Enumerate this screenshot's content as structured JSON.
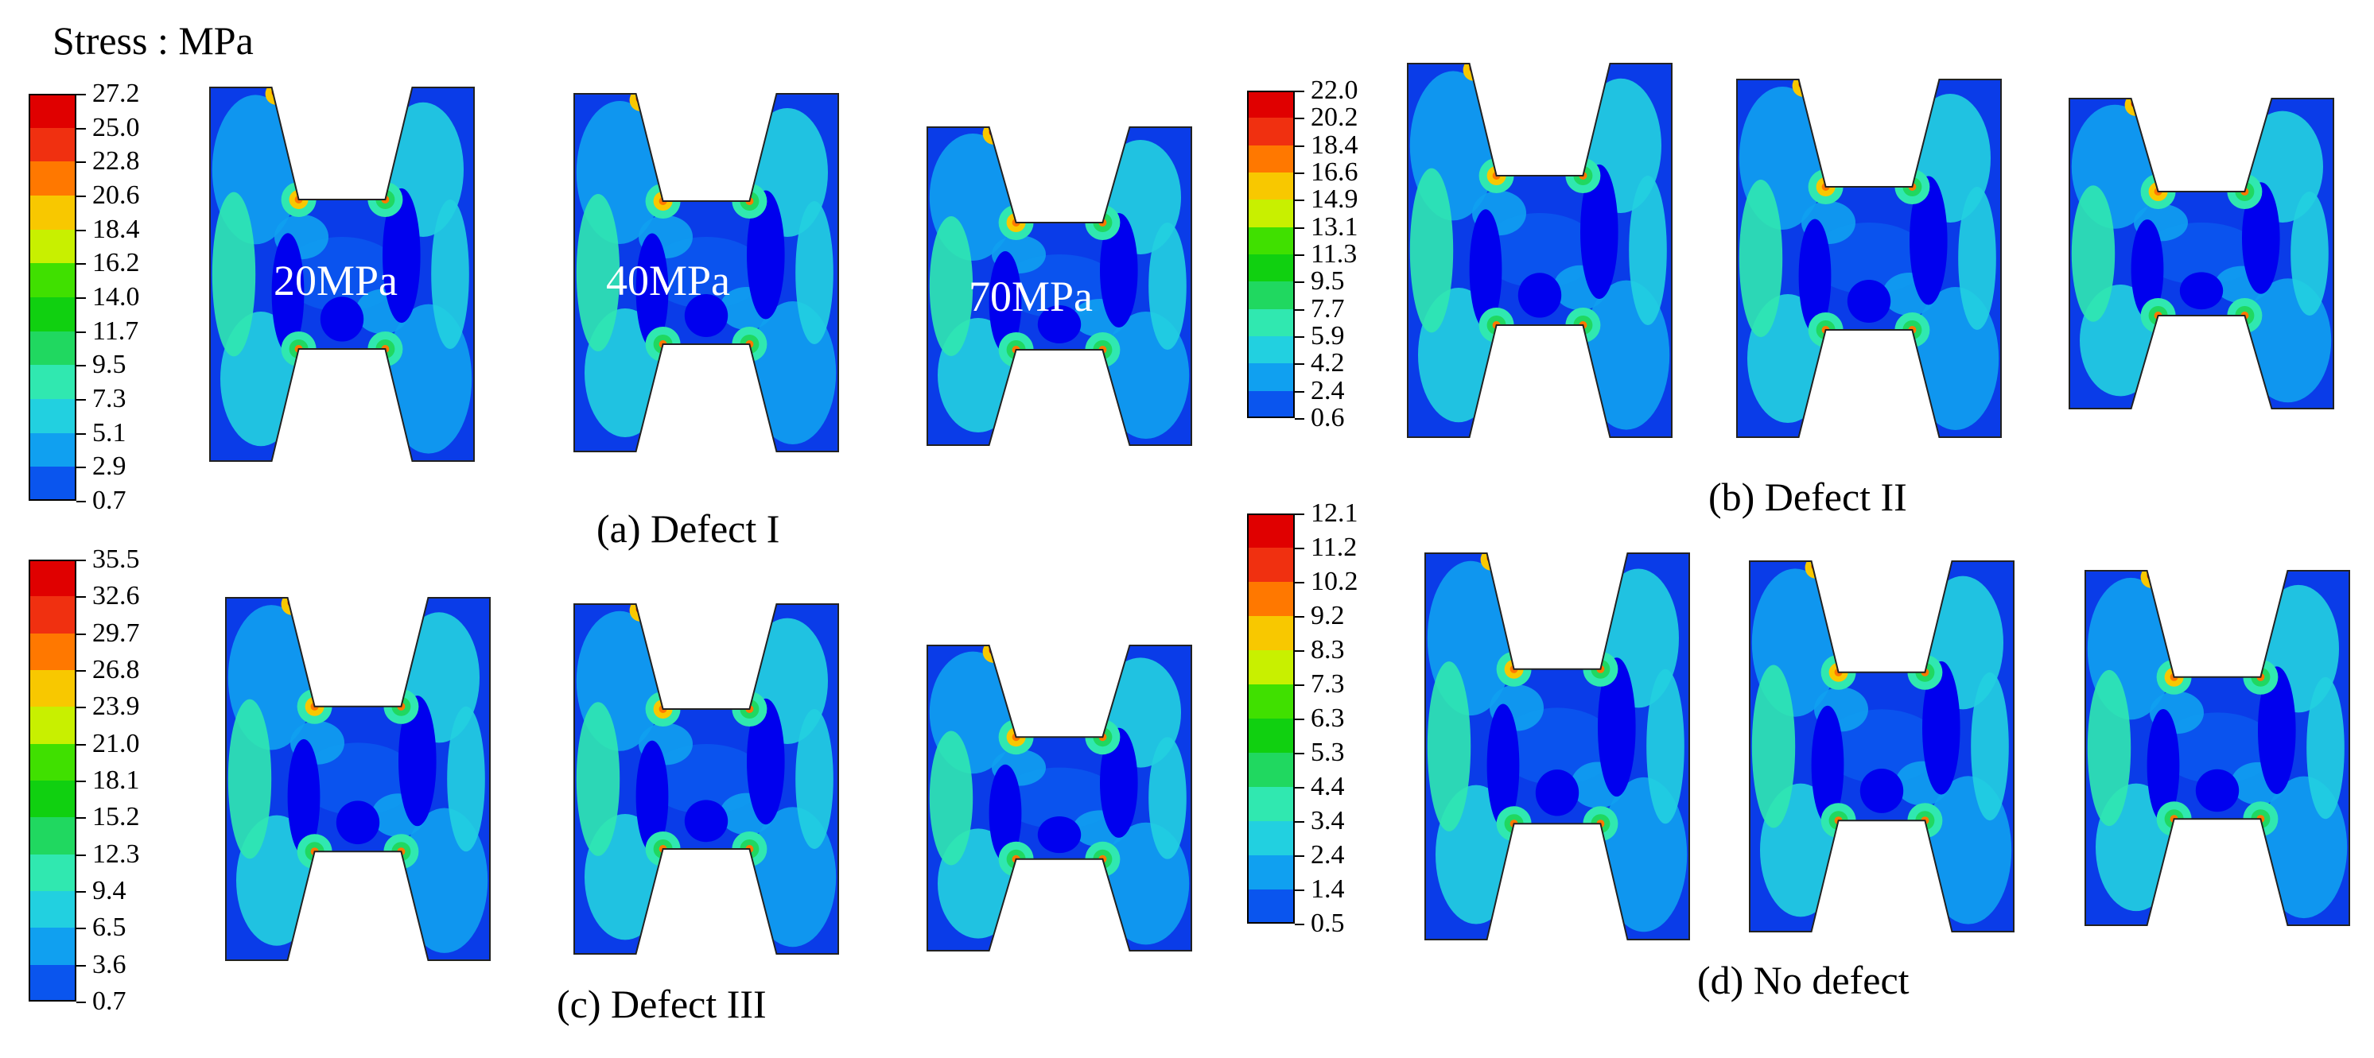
{
  "title": "Stress : MPa",
  "colors": {
    "bands": [
      "#0000ee",
      "#0a55ee",
      "#10a0f0",
      "#22d0e0",
      "#30e8b0",
      "#20d860",
      "#10d010",
      "#40e000",
      "#c8f000",
      "#f8c800",
      "#ff7800",
      "#f03010",
      "#e00000"
    ],
    "specimen_base": "#0a3ce8",
    "outline": "#222222"
  },
  "panels": [
    {
      "caption": "(a) Defect I",
      "scale": [
        "27.2",
        "25.0",
        "22.8",
        "20.6",
        "18.4",
        "16.2",
        "14.0",
        "11.7",
        "9.5",
        "7.3",
        "5.1",
        "2.9",
        "0.7"
      ],
      "loads": [
        "20MPa",
        "40MPa",
        "70MPa"
      ]
    },
    {
      "caption": "(b) Defect II",
      "scale": [
        "22.0",
        "20.2",
        "18.4",
        "16.6",
        "14.9",
        "13.1",
        "11.3",
        "9.5",
        "7.7",
        "5.9",
        "4.2",
        "2.4",
        "0.6"
      ],
      "loads": []
    },
    {
      "caption": "(c) Defect III",
      "scale": [
        "35.5",
        "32.6",
        "29.7",
        "26.8",
        "23.9",
        "21.0",
        "18.1",
        "15.2",
        "12.3",
        "9.4",
        "6.5",
        "3.6",
        "0.7"
      ],
      "loads": []
    },
    {
      "caption": "(d) No defect",
      "scale": [
        "12.1",
        "11.2",
        "10.2",
        "9.2",
        "8.3",
        "7.3",
        "6.3",
        "5.3",
        "4.4",
        "3.4",
        "2.4",
        "1.4",
        "0.5"
      ],
      "loads": []
    }
  ]
}
